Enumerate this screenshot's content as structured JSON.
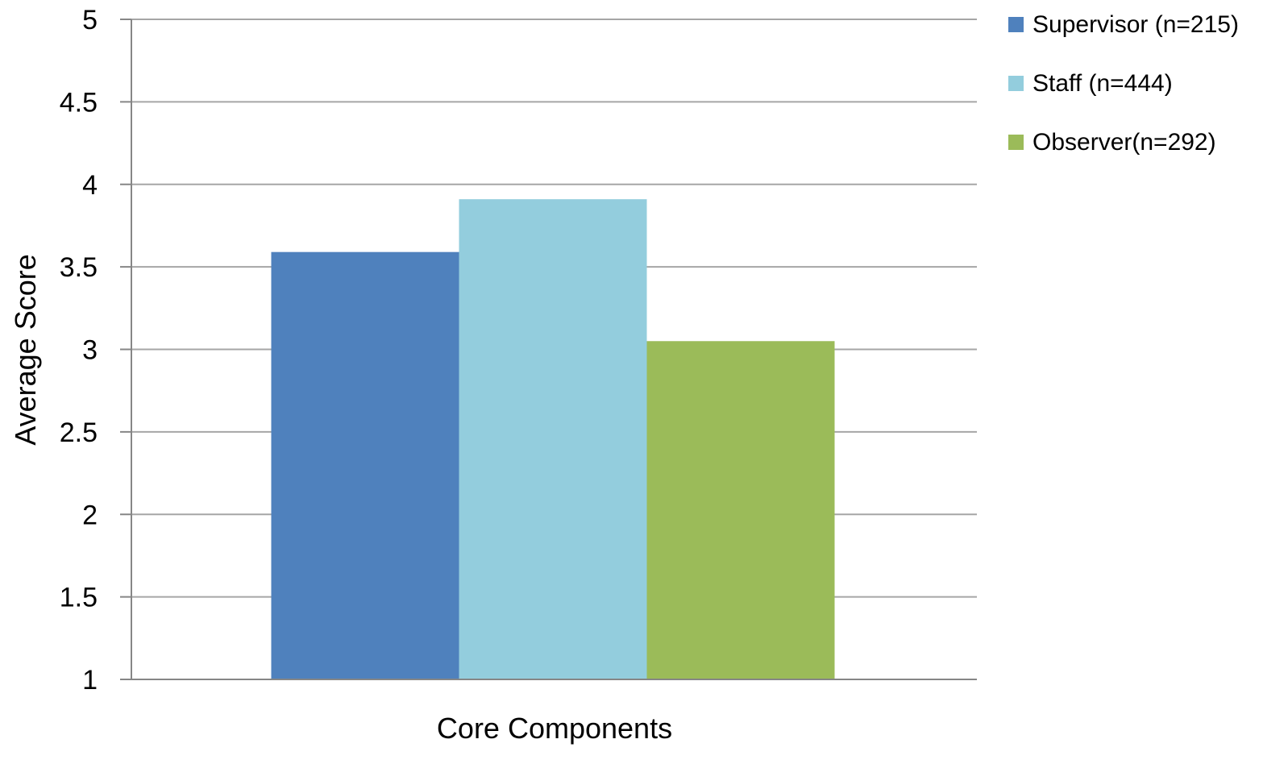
{
  "chart_data": {
    "type": "bar",
    "title": "",
    "xlabel": "Core Components",
    "ylabel": "Average Score",
    "ylim": [
      1,
      5
    ],
    "yticks": [
      "1",
      "1.5",
      "2",
      "2.5",
      "3",
      "3.5",
      "4",
      "4.5",
      "5"
    ],
    "categories": [
      "Core Components"
    ],
    "grid": true,
    "legend_position": "top-right",
    "series": [
      {
        "name": "Supervisor (n=215)",
        "values": [
          3.59
        ],
        "color": "#4f81bd"
      },
      {
        "name": "Staff (n=444)",
        "values": [
          3.91
        ],
        "color": "#93cddd"
      },
      {
        "name": "Observer(n=292)",
        "values": [
          3.05
        ],
        "color": "#9bbb59"
      }
    ]
  }
}
